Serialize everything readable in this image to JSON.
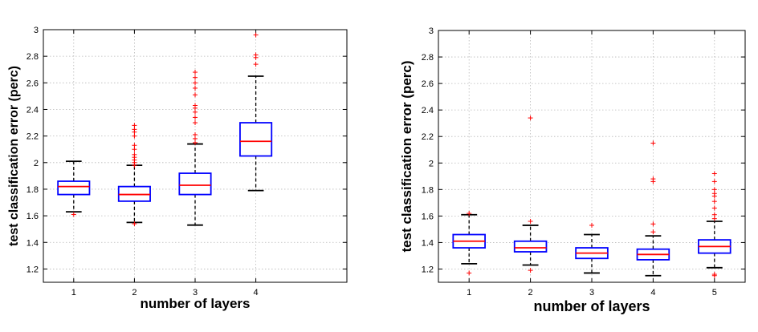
{
  "chart_data": [
    {
      "type": "box",
      "xlabel": "number of layers",
      "ylabel": "test classification error (perc)",
      "ylim": [
        1.1,
        3.0
      ],
      "yticks": [
        "1.2",
        "1.4",
        "1.6",
        "1.8",
        "2",
        "2.2",
        "2.4",
        "2.6",
        "2.8",
        "3"
      ],
      "xlim": [
        0.5,
        5.5
      ],
      "categories": [
        "1",
        "2",
        "3",
        "4"
      ],
      "grid": true,
      "colors": {
        "box": "#0000ff",
        "median": "#ff0000",
        "whisker": "#000000",
        "outlier": "#ff0000"
      },
      "boxes": [
        {
          "x": 1,
          "whislo": 1.63,
          "q1": 1.76,
          "med": 1.82,
          "q3": 1.86,
          "whishi": 2.01,
          "fliers": [
            1.61
          ]
        },
        {
          "x": 2,
          "whislo": 1.55,
          "q1": 1.71,
          "med": 1.76,
          "q3": 1.82,
          "whishi": 1.98,
          "fliers": [
            1.54,
            1.98,
            2.0,
            2.02,
            2.04,
            2.06,
            2.1,
            2.13,
            2.2,
            2.23,
            2.25,
            2.28
          ]
        },
        {
          "x": 3,
          "whislo": 1.53,
          "q1": 1.76,
          "med": 1.83,
          "q3": 1.92,
          "whishi": 2.14,
          "fliers": [
            2.15,
            2.18,
            2.21,
            2.3,
            2.34,
            2.38,
            2.41,
            2.43,
            2.51,
            2.56,
            2.6,
            2.64,
            2.68
          ]
        },
        {
          "x": 4,
          "whislo": 1.79,
          "q1": 2.05,
          "med": 2.16,
          "q3": 2.3,
          "whishi": 2.65,
          "fliers": [
            2.74,
            2.79,
            2.81,
            2.96
          ]
        }
      ]
    },
    {
      "type": "box",
      "xlabel": "number of layers",
      "ylabel": "test classification error (perc)",
      "ylim": [
        1.1,
        3.0
      ],
      "yticks": [
        "1.2",
        "1.4",
        "1.6",
        "1.8",
        "2",
        "2.2",
        "2.4",
        "2.6",
        "2.8",
        "3"
      ],
      "xlim": [
        0.5,
        5.5
      ],
      "categories": [
        "1",
        "2",
        "3",
        "4",
        "5"
      ],
      "grid": true,
      "colors": {
        "box": "#0000ff",
        "median": "#ff0000",
        "whisker": "#000000",
        "outlier": "#ff0000"
      },
      "boxes": [
        {
          "x": 1,
          "whislo": 1.24,
          "q1": 1.36,
          "med": 1.41,
          "q3": 1.46,
          "whishi": 1.61,
          "fliers": [
            1.17,
            1.62
          ]
        },
        {
          "x": 2,
          "whislo": 1.23,
          "q1": 1.33,
          "med": 1.36,
          "q3": 1.41,
          "whishi": 1.53,
          "fliers": [
            1.19,
            1.56,
            2.34
          ]
        },
        {
          "x": 3,
          "whislo": 1.17,
          "q1": 1.28,
          "med": 1.32,
          "q3": 1.36,
          "whishi": 1.46,
          "fliers": [
            1.53
          ]
        },
        {
          "x": 4,
          "whislo": 1.15,
          "q1": 1.27,
          "med": 1.31,
          "q3": 1.35,
          "whishi": 1.45,
          "fliers": [
            1.48,
            1.54,
            1.86,
            1.88,
            2.15
          ]
        },
        {
          "x": 5,
          "whislo": 1.21,
          "q1": 1.32,
          "med": 1.37,
          "q3": 1.42,
          "whishi": 1.56,
          "fliers": [
            1.15,
            1.16,
            1.58,
            1.61,
            1.66,
            1.71,
            1.75,
            1.77,
            1.8,
            1.86,
            1.92
          ]
        }
      ]
    }
  ]
}
